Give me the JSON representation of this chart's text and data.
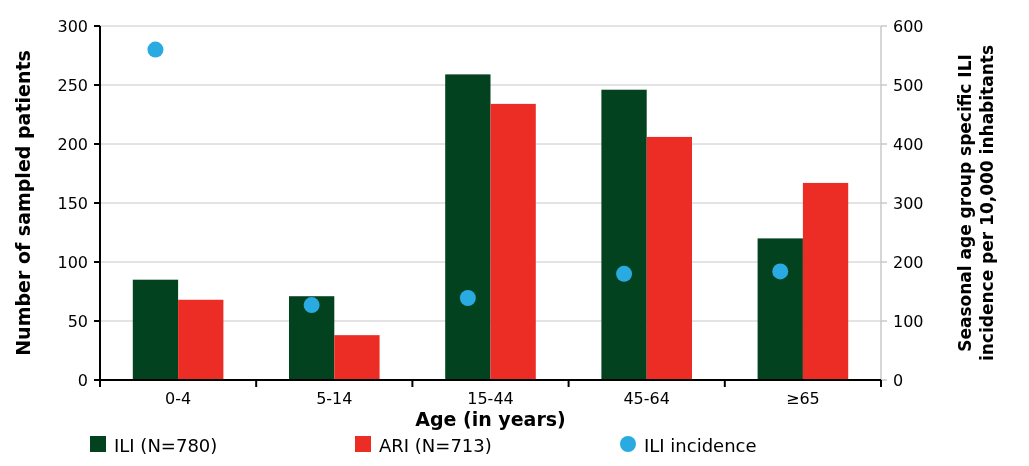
{
  "chart_data": {
    "type": "bar",
    "xlabel": "Age (in years)",
    "ylabel": "Number of sampled patients",
    "y2label": "Seasonal age group specific ILI incidence per 10,000 inhabitants",
    "categories": [
      "0-4",
      "5-14",
      "15-44",
      "45-64",
      "≥65"
    ],
    "series": [
      {
        "name": "ILI (N=780)",
        "color": "#03421e",
        "values": [
          85,
          71,
          259,
          246,
          120
        ]
      },
      {
        "name": "ARI (N=713)",
        "color": "#ec2d26",
        "values": [
          68,
          38,
          234,
          206,
          167
        ]
      },
      {
        "name": "ILI incidence",
        "type": "scatter",
        "axis": "y2",
        "color": "#29abe2",
        "values": [
          560,
          127,
          139,
          180,
          184
        ]
      }
    ],
    "ylim": [
      0,
      300
    ],
    "yticks": [
      0,
      50,
      100,
      150,
      200,
      250,
      300
    ],
    "y2lim": [
      0,
      600
    ],
    "y2ticks": [
      0,
      100,
      200,
      300,
      400,
      500,
      600
    ],
    "grid": "y",
    "legend": "bottom",
    "marker": "circle"
  }
}
